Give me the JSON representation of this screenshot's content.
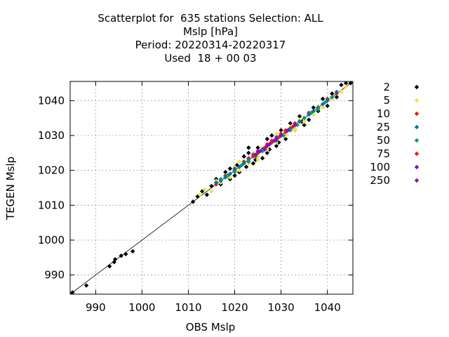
{
  "chart_data": {
    "type": "scatter",
    "title_lines": [
      "Scatterplot for  635 stations Selection: ALL",
      "Mslp [hPa]",
      "Period: 20220314-20220317",
      "Used  18 + 00 03"
    ],
    "xlabel": "OBS Mslp",
    "ylabel": "TEGEN Mslp",
    "xlim": [
      984.5,
      1045.5
    ],
    "ylim": [
      984.5,
      1045.5
    ],
    "xticks": [
      990,
      1000,
      1010,
      1020,
      1030,
      1040
    ],
    "yticks": [
      990,
      1000,
      1010,
      1020,
      1030,
      1040
    ],
    "grid": true,
    "legend_position": "right",
    "diagonal": true,
    "series": [
      {
        "name": "2",
        "color": "#000000",
        "points": [
          [
            985,
            985
          ],
          [
            988,
            987
          ],
          [
            993,
            992.5
          ],
          [
            994,
            993.7
          ],
          [
            994.2,
            994.5
          ],
          [
            995.5,
            995.5
          ],
          [
            996.5,
            996
          ],
          [
            998,
            996.8
          ],
          [
            1011,
            1011
          ],
          [
            1012,
            1012.5
          ],
          [
            1013,
            1014
          ],
          [
            1014,
            1013
          ],
          [
            1015,
            1015.5
          ],
          [
            1016,
            1017.5
          ],
          [
            1017,
            1016
          ],
          [
            1018,
            1019.5
          ],
          [
            1019,
            1020.5
          ],
          [
            1019,
            1017.5
          ],
          [
            1020,
            1018.5
          ],
          [
            1020.5,
            1021.5
          ],
          [
            1021,
            1019.5
          ],
          [
            1022,
            1024
          ],
          [
            1022.5,
            1021
          ],
          [
            1023,
            1025
          ],
          [
            1024,
            1022
          ],
          [
            1025,
            1026.5
          ],
          [
            1026,
            1023.5
          ],
          [
            1027,
            1029
          ],
          [
            1027.5,
            1026
          ],
          [
            1028,
            1030
          ],
          [
            1029,
            1027
          ],
          [
            1030,
            1031.5
          ],
          [
            1031,
            1029
          ],
          [
            1032,
            1033.5
          ],
          [
            1033,
            1031.5
          ],
          [
            1034,
            1035.5
          ],
          [
            1035,
            1033
          ],
          [
            1036,
            1034.5
          ],
          [
            1037,
            1038
          ],
          [
            1038,
            1037
          ],
          [
            1039,
            1040.5
          ],
          [
            1040,
            1038.5
          ],
          [
            1041,
            1042
          ],
          [
            1042,
            1041
          ],
          [
            1043,
            1044.5
          ],
          [
            1044,
            1045
          ],
          [
            1045,
            1045
          ],
          [
            1024.5,
            1023
          ],
          [
            1029.5,
            1028
          ],
          [
            1034.5,
            1034
          ],
          [
            1023,
            1026.5
          ],
          [
            1027,
            1025
          ]
        ]
      },
      {
        "name": "5",
        "color": "#f0e442",
        "points": [
          [
            1012.5,
            1013
          ],
          [
            1013.5,
            1014.5
          ],
          [
            1015,
            1014
          ],
          [
            1016,
            1017
          ],
          [
            1017,
            1016.5
          ],
          [
            1018,
            1018.5
          ],
          [
            1019,
            1018
          ],
          [
            1020,
            1021
          ],
          [
            1021,
            1020
          ],
          [
            1022,
            1022.5
          ],
          [
            1023,
            1022
          ],
          [
            1024,
            1025
          ],
          [
            1025,
            1024
          ],
          [
            1026,
            1026.5
          ],
          [
            1027,
            1026
          ],
          [
            1028,
            1028.5
          ],
          [
            1029,
            1028
          ],
          [
            1030,
            1030.5
          ],
          [
            1031,
            1030
          ],
          [
            1032,
            1032.5
          ],
          [
            1033,
            1032
          ],
          [
            1034,
            1034.5
          ],
          [
            1035,
            1034
          ],
          [
            1036,
            1036.5
          ],
          [
            1037,
            1036
          ],
          [
            1038,
            1038.5
          ],
          [
            1039,
            1038
          ],
          [
            1040,
            1040.5
          ],
          [
            1041,
            1040.5
          ],
          [
            1042,
            1042.5
          ],
          [
            1043,
            1042.5
          ],
          [
            1044,
            1044
          ],
          [
            1021,
            1022.5
          ],
          [
            1025,
            1023
          ],
          [
            1029,
            1030.5
          ],
          [
            1033,
            1031.5
          ]
        ]
      },
      {
        "name": "10",
        "color": "#e51e10",
        "points": [
          [
            1016,
            1016
          ],
          [
            1018,
            1018.5
          ],
          [
            1020,
            1020
          ],
          [
            1022,
            1022.5
          ],
          [
            1023,
            1023.5
          ],
          [
            1024,
            1024
          ],
          [
            1025,
            1025.5
          ],
          [
            1026,
            1026
          ],
          [
            1027,
            1027.5
          ],
          [
            1028,
            1028.5
          ],
          [
            1029,
            1029
          ],
          [
            1030,
            1030.5
          ],
          [
            1031,
            1031.5
          ],
          [
            1032,
            1032
          ],
          [
            1033,
            1033.5
          ],
          [
            1034,
            1034
          ],
          [
            1036,
            1036.5
          ],
          [
            1038,
            1038
          ],
          [
            1040,
            1040.5
          ],
          [
            1042,
            1042
          ]
        ]
      },
      {
        "name": "25",
        "color": "#0072b2",
        "points": [
          [
            1016,
            1016.5
          ],
          [
            1017,
            1017
          ],
          [
            1018,
            1018
          ],
          [
            1019,
            1019
          ],
          [
            1020,
            1020.5
          ],
          [
            1021,
            1021
          ],
          [
            1022,
            1022
          ],
          [
            1023,
            1023
          ],
          [
            1024,
            1024.5
          ],
          [
            1025,
            1025
          ],
          [
            1026,
            1026
          ],
          [
            1027,
            1027
          ],
          [
            1028,
            1028
          ],
          [
            1029,
            1029.5
          ],
          [
            1030,
            1030
          ],
          [
            1031,
            1031
          ],
          [
            1032,
            1032
          ],
          [
            1033,
            1033
          ],
          [
            1034,
            1034
          ],
          [
            1035,
            1035
          ],
          [
            1036,
            1036
          ],
          [
            1037,
            1037
          ],
          [
            1038,
            1038
          ],
          [
            1039,
            1039
          ],
          [
            1040,
            1040
          ],
          [
            1041,
            1041
          ],
          [
            1042,
            1042.5
          ]
        ]
      },
      {
        "name": "50",
        "color": "#009e73",
        "points": [
          [
            1017,
            1017.5
          ],
          [
            1018.5,
            1018.5
          ],
          [
            1020,
            1019.5
          ],
          [
            1021.5,
            1021.5
          ],
          [
            1023,
            1022.5
          ],
          [
            1024.5,
            1024
          ],
          [
            1026,
            1025.5
          ],
          [
            1027.5,
            1027.5
          ],
          [
            1029,
            1028.5
          ],
          [
            1030.5,
            1030
          ],
          [
            1032,
            1031.5
          ],
          [
            1033.5,
            1033
          ],
          [
            1035,
            1035
          ],
          [
            1036.5,
            1036.5
          ],
          [
            1038,
            1037.5
          ],
          [
            1039.5,
            1039.5
          ],
          [
            1041,
            1041
          ]
        ]
      },
      {
        "name": "75",
        "color": "#e51e10",
        "points": [
          [
            1024,
            1024
          ],
          [
            1025,
            1025
          ],
          [
            1026.5,
            1026.5
          ],
          [
            1028,
            1028
          ],
          [
            1029.5,
            1029.5
          ],
          [
            1031,
            1031
          ],
          [
            1032.5,
            1032.5
          ]
        ]
      },
      {
        "name": "100",
        "color": "#9400d3",
        "points": [
          [
            1024.5,
            1024.5
          ],
          [
            1025.5,
            1025.5
          ],
          [
            1026.5,
            1026
          ],
          [
            1027.5,
            1027.5
          ],
          [
            1028.5,
            1028.5
          ],
          [
            1030,
            1030
          ],
          [
            1031.5,
            1031.5
          ],
          [
            1033,
            1033
          ]
        ]
      },
      {
        "name": "250",
        "color": "#9400d3",
        "points": [
          [
            1025,
            1025.5
          ],
          [
            1027,
            1027
          ],
          [
            1029,
            1029
          ]
        ]
      }
    ]
  }
}
